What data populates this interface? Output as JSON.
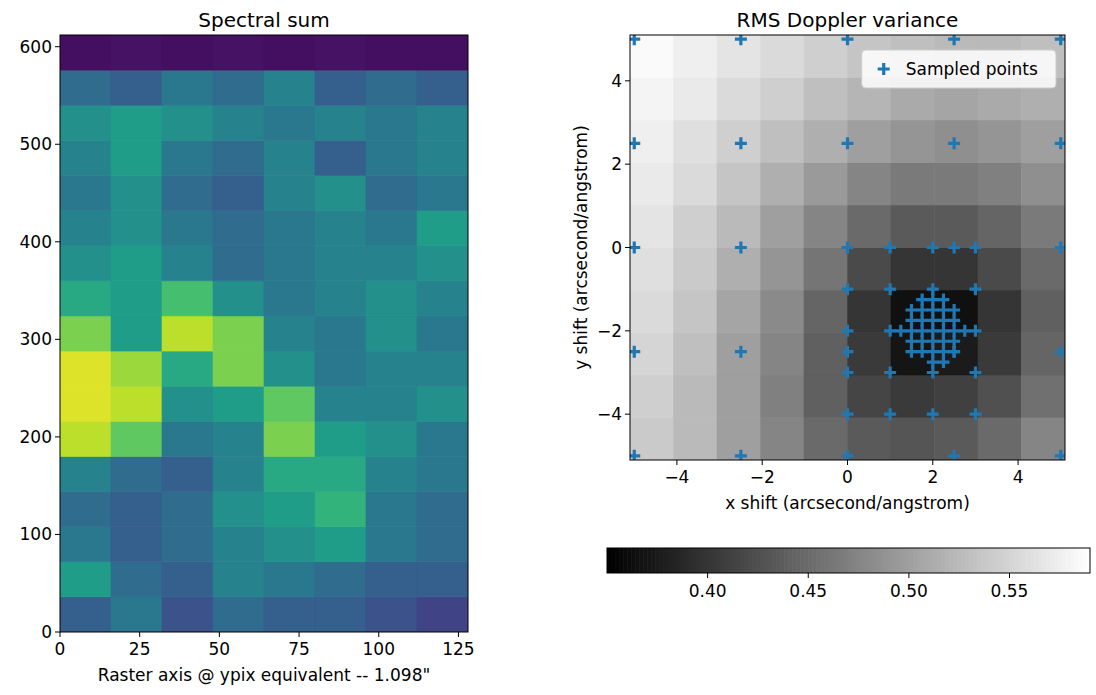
{
  "chart_data": [
    {
      "type": "heatmap",
      "title": "Spectral sum",
      "x_label": "Raster axis @ ypix equivalent -- 1.098\"",
      "xlim": [
        0,
        128
      ],
      "ylim": [
        0,
        612
      ],
      "xticks": [
        0,
        25,
        50,
        75,
        100,
        125
      ],
      "yticks": [
        0,
        100,
        200,
        300,
        400,
        500,
        600
      ],
      "color": "viridis",
      "color_range": [
        0,
        1
      ],
      "x_edges": [
        0,
        16,
        32,
        48,
        64,
        80,
        96,
        112,
        128
      ],
      "y_edges": [
        0,
        36,
        72,
        108,
        144,
        180,
        216,
        252,
        288,
        324,
        360,
        396,
        432,
        468,
        504,
        540,
        576,
        612
      ],
      "cells": [
        [
          0.3,
          0.4,
          0.25,
          0.35,
          0.3,
          0.3,
          0.25,
          0.2
        ],
        [
          0.55,
          0.35,
          0.3,
          0.45,
          0.4,
          0.35,
          0.3,
          0.3
        ],
        [
          0.4,
          0.3,
          0.35,
          0.45,
          0.5,
          0.55,
          0.4,
          0.35
        ],
        [
          0.35,
          0.3,
          0.35,
          0.5,
          0.55,
          0.65,
          0.4,
          0.35
        ],
        [
          0.45,
          0.35,
          0.3,
          0.45,
          0.6,
          0.6,
          0.45,
          0.4
        ],
        [
          0.9,
          0.75,
          0.4,
          0.45,
          0.8,
          0.55,
          0.5,
          0.4
        ],
        [
          0.95,
          0.9,
          0.5,
          0.55,
          0.75,
          0.45,
          0.45,
          0.5
        ],
        [
          0.95,
          0.85,
          0.6,
          0.8,
          0.5,
          0.4,
          0.45,
          0.45
        ],
        [
          0.8,
          0.55,
          0.9,
          0.8,
          0.45,
          0.4,
          0.5,
          0.4
        ],
        [
          0.6,
          0.55,
          0.7,
          0.5,
          0.4,
          0.45,
          0.5,
          0.45
        ],
        [
          0.5,
          0.55,
          0.45,
          0.35,
          0.4,
          0.45,
          0.45,
          0.5
        ],
        [
          0.45,
          0.5,
          0.4,
          0.35,
          0.4,
          0.45,
          0.4,
          0.55
        ],
        [
          0.4,
          0.5,
          0.35,
          0.3,
          0.45,
          0.5,
          0.35,
          0.4
        ],
        [
          0.45,
          0.55,
          0.4,
          0.35,
          0.45,
          0.3,
          0.4,
          0.45
        ],
        [
          0.5,
          0.55,
          0.5,
          0.45,
          0.4,
          0.45,
          0.4,
          0.45
        ],
        [
          0.35,
          0.3,
          0.4,
          0.35,
          0.45,
          0.3,
          0.35,
          0.3
        ],
        [
          0.04,
          0.05,
          0.04,
          0.05,
          0.04,
          0.05,
          0.04,
          0.04
        ]
      ]
    },
    {
      "type": "heatmap",
      "title": "RMS Doppler variance",
      "x_label": "x shift (arcsecond/angstrom)",
      "y_label": "y shift (arcsecond/angstrom)",
      "xlim": [
        -5.1,
        5.1
      ],
      "ylim": [
        -5.1,
        5.1
      ],
      "xticks": [
        {
          "value": -4,
          "label": "−4"
        },
        {
          "value": -2,
          "label": "−2"
        },
        0,
        2,
        4
      ],
      "yticks": [
        {
          "value": -4,
          "label": "−4"
        },
        {
          "value": -2,
          "label": "−2"
        },
        0,
        2,
        4
      ],
      "color": "gray",
      "color_range": [
        0.35,
        0.59
      ],
      "color_ticks": [
        {
          "value": 0.4,
          "label": "0.40"
        },
        {
          "value": 0.45,
          "label": "0.45"
        },
        {
          "value": 0.5,
          "label": "0.50"
        },
        {
          "value": 0.55,
          "label": "0.55"
        }
      ],
      "x_edges": [
        -5.1,
        -4.08,
        -3.06,
        -2.04,
        -1.02,
        0,
        1.02,
        2.04,
        3.06,
        4.08,
        5.1
      ],
      "y_edges": [
        -5.1,
        -4.08,
        -3.06,
        -2.04,
        -1.02,
        0,
        1.02,
        2.04,
        3.06,
        4.08,
        5.1
      ],
      "cells": [
        [
          0.54,
          0.525,
          0.5,
          0.475,
          0.45,
          0.435,
          0.43,
          0.435,
          0.45,
          0.475
        ],
        [
          0.545,
          0.525,
          0.5,
          0.47,
          0.44,
          0.415,
          0.405,
          0.41,
          0.425,
          0.455
        ],
        [
          0.55,
          0.53,
          0.5,
          0.475,
          0.44,
          0.405,
          0.37,
          0.375,
          0.405,
          0.445
        ],
        [
          0.555,
          0.535,
          0.505,
          0.48,
          0.445,
          0.4,
          0.365,
          0.365,
          0.4,
          0.44
        ],
        [
          0.56,
          0.54,
          0.515,
          0.49,
          0.46,
          0.42,
          0.4,
          0.4,
          0.42,
          0.45
        ],
        [
          0.565,
          0.545,
          0.525,
          0.5,
          0.475,
          0.45,
          0.435,
          0.435,
          0.445,
          0.465
        ],
        [
          0.57,
          0.555,
          0.535,
          0.515,
          0.495,
          0.475,
          0.465,
          0.465,
          0.47,
          0.485
        ],
        [
          0.575,
          0.56,
          0.545,
          0.53,
          0.515,
          0.5,
          0.49,
          0.485,
          0.49,
          0.5
        ],
        [
          0.58,
          0.57,
          0.555,
          0.545,
          0.53,
          0.52,
          0.51,
          0.505,
          0.51,
          0.515
        ],
        [
          0.585,
          0.575,
          0.565,
          0.555,
          0.545,
          0.535,
          0.53,
          0.525,
          0.525,
          0.53
        ]
      ],
      "legend": "upper right",
      "series": [
        {
          "name": "Sampled points",
          "type": "scatter",
          "marker": "plus",
          "color": "#1f77b4",
          "x": [
            -5,
            -2.5,
            0,
            2.5,
            5,
            -5,
            -2.5,
            0,
            2.5,
            5,
            -5,
            -2.5,
            0,
            1,
            2,
            2.5,
            3,
            5,
            -5,
            -2.5,
            0,
            2.5,
            5,
            -5,
            -2.5,
            0,
            2.5,
            5,
            0,
            1,
            2,
            3,
            0,
            0,
            1,
            2,
            3,
            0,
            1,
            2,
            3,
            1.75,
            2,
            2.25,
            1.5,
            1.75,
            2,
            2.25,
            2.5,
            1.5,
            1.75,
            2,
            2.25,
            2.5,
            1,
            1.25,
            1.5,
            1.75,
            2,
            2.25,
            2.5,
            2.75,
            3,
            1.5,
            1.75,
            2,
            2.25,
            2.5,
            1.5,
            1.75,
            2,
            2.25,
            2.5,
            2,
            2.25
          ],
          "y": [
            5,
            5,
            5,
            5,
            5,
            2.5,
            2.5,
            2.5,
            2.5,
            2.5,
            0,
            0,
            0,
            0,
            0,
            0,
            0,
            0,
            -2.5,
            -2.5,
            -2.5,
            -2.5,
            -2.5,
            -5,
            -5,
            -5,
            -5,
            -5,
            -1,
            -1,
            -1,
            -1,
            -2,
            -3,
            -3,
            -3,
            -3,
            -4,
            -4,
            -4,
            -4,
            -1.25,
            -1.25,
            -1.25,
            -1.5,
            -1.5,
            -1.5,
            -1.5,
            -1.5,
            -1.75,
            -1.75,
            -1.75,
            -1.75,
            -1.75,
            -2,
            -2,
            -2,
            -2,
            -2,
            -2,
            -2,
            -2,
            -2,
            -2.25,
            -2.25,
            -2.25,
            -2.25,
            -2.25,
            -2.5,
            -2.5,
            -2.5,
            -2.5,
            -2.5,
            -2.75,
            -2.75
          ]
        }
      ]
    }
  ]
}
